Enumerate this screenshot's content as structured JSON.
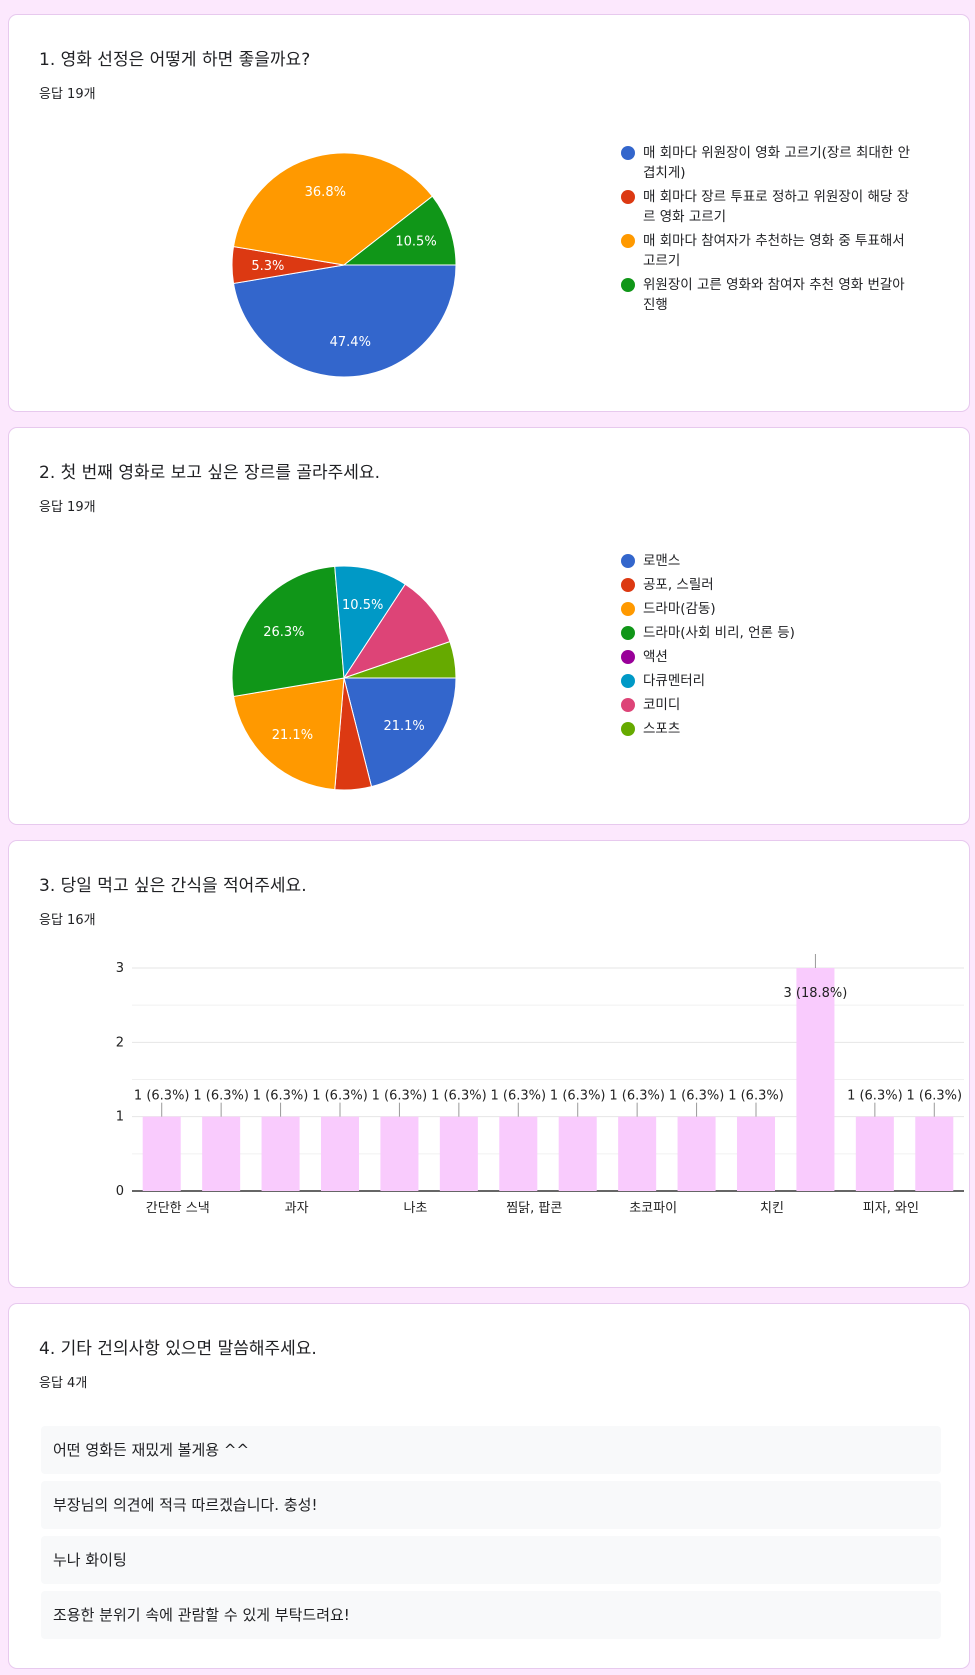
{
  "q1": {
    "title": "1. 영화 선정은 어떻게 하면 좋을까요?",
    "count": "응답 19개",
    "legend": [
      {
        "label": "매 회마다 위원장이 영화 고르기(장르 최대한 안 겹치게)",
        "color": "#3366cc"
      },
      {
        "label": "매 회마다 장르 투표로 정하고 위원장이 해당 장르 영화 고르기",
        "color": "#dc3912"
      },
      {
        "label": "매 회마다 참여자가 추천하는 영화 중 투표해서 고르기",
        "color": "#ff9900"
      },
      {
        "label": "위원장이 고른 영화와 참여자 추천 영화 번갈아 진행",
        "color": "#109618"
      }
    ]
  },
  "q2": {
    "title": "2. 첫 번째 영화로 보고 싶은 장르를 골라주세요.",
    "count": "응답 19개",
    "legend": [
      {
        "label": "로맨스",
        "color": "#3366cc"
      },
      {
        "label": "공포, 스릴러",
        "color": "#dc3912"
      },
      {
        "label": "드라마(감동)",
        "color": "#ff9900"
      },
      {
        "label": "드라마(사회 비리, 언론 등)",
        "color": "#109618"
      },
      {
        "label": "액션",
        "color": "#990099"
      },
      {
        "label": "다큐멘터리",
        "color": "#0099c6"
      },
      {
        "label": "코미디",
        "color": "#dd4477"
      },
      {
        "label": "스포츠",
        "color": "#66aa00"
      }
    ]
  },
  "q3": {
    "title": "3. 당일 먹고 싶은 간식을 적어주세요.",
    "count": "응답 16개",
    "bar_color": "#f9cbfd"
  },
  "q4": {
    "title": "4. 기타 건의사항 있으면 말씀해주세요.",
    "count": "응답 4개",
    "responses": [
      "어떤 영화든 재밌게 볼게용 ^^",
      "부장님의 의견에 적극 따르겠습니다. 충성!",
      "누나 화이팅",
      "조용한 분위기 속에 관람할 수 있게 부탁드려요!"
    ]
  },
  "chart_data": [
    {
      "type": "pie",
      "categories": [
        "매 회마다 위원장이 영화 고르기(장르 최대한 안 겹치게)",
        "매 회마다 장르 투표로 정하고 위원장이 해당 장르 영화 고르기",
        "매 회마다 참여자가 추천하는 영화 중 투표해서 고르기",
        "위원장이 고른 영화와 참여자 추천 영화 번갈아 진행"
      ],
      "values": [
        9,
        1,
        7,
        2
      ],
      "labels": [
        "47.4%",
        "5.3%",
        "36.8%",
        "10.5%"
      ],
      "colors": [
        "#3366cc",
        "#dc3912",
        "#ff9900",
        "#109618"
      ]
    },
    {
      "type": "pie",
      "categories": [
        "로맨스",
        "공포, 스릴러",
        "드라마(감동)",
        "드라마(사회 비리, 언론 등)",
        "액션",
        "다큐멘터리",
        "코미디",
        "스포츠"
      ],
      "values": [
        4,
        1,
        4,
        5,
        0,
        2,
        2,
        1
      ],
      "labels": [
        "21.1%",
        "",
        "21.1%",
        "26.3%",
        "",
        "10.5%",
        "",
        ""
      ],
      "colors": [
        "#3366cc",
        "#dc3912",
        "#ff9900",
        "#109618",
        "#990099",
        "#0099c6",
        "#dd4477",
        "#66aa00"
      ]
    },
    {
      "type": "bar",
      "categories": [
        "간단한 스낵",
        "",
        "과자",
        "",
        "나초",
        "",
        "찜닭, 팝콘",
        "",
        "초코파이",
        "",
        "치킨",
        "",
        "피자, 와인",
        ""
      ],
      "values": [
        1,
        1,
        1,
        1,
        1,
        1,
        1,
        1,
        1,
        1,
        1,
        3,
        1,
        1
      ],
      "labels": [
        "1 (6.3%)",
        "1 (6.3%)",
        "1 (6.3%)",
        "1 (6.3%)",
        "1 (6.3%)",
        "1 (6.3%)",
        "1 (6.3%)",
        "1 (6.3%)",
        "1 (6.3%)",
        "1 (6.3%)",
        "1 (6.3%)",
        "3 (18.8%)",
        "1 (6.3%)",
        "1 (6.3%)"
      ],
      "ylim": [
        0,
        3
      ],
      "yticks": [
        "0",
        "1",
        "2",
        "3"
      ]
    }
  ]
}
